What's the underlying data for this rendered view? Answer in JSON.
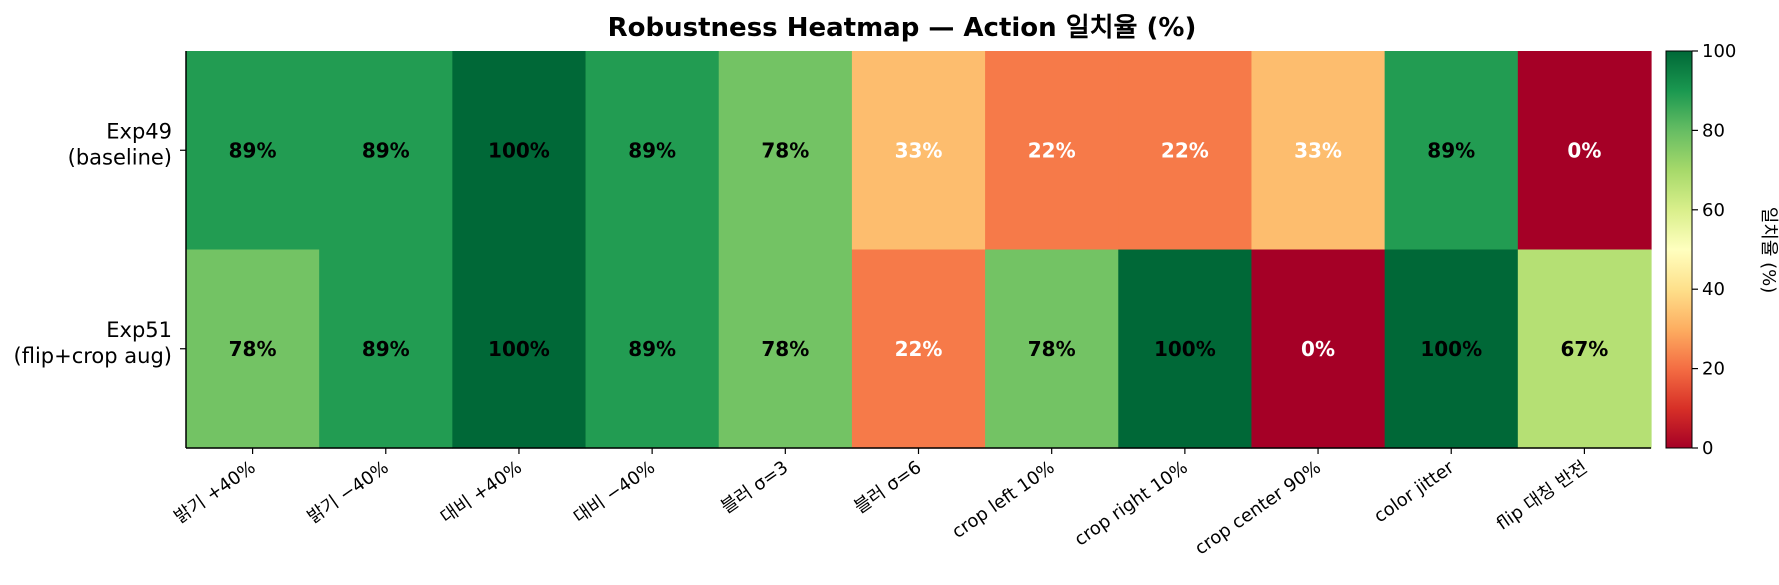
{
  "chart_data": {
    "type": "heatmap",
    "title": "Robustness Heatmap — Action 일치율 (%)",
    "rows": [
      "Exp49\n(baseline)",
      "Exp51\n(flip+crop aug)"
    ],
    "columns": [
      "밝기 +40%",
      "밝기 −40%",
      "대비 +40%",
      "대비 −40%",
      "블러 σ=3",
      "블러 σ=6",
      "crop left 10%",
      "crop right 10%",
      "crop center 90%",
      "color jitter",
      "flip 대칭 반전"
    ],
    "values": [
      [
        89,
        89,
        100,
        89,
        78,
        33,
        22,
        22,
        33,
        89,
        0
      ],
      [
        78,
        89,
        100,
        89,
        78,
        22,
        78,
        100,
        0,
        100,
        67
      ]
    ],
    "value_format": "{v}%",
    "colormap": "RdYlGn",
    "vmin": 0,
    "vmax": 100,
    "colorbar": {
      "label": "일치율 (%)",
      "ticks": [
        0,
        20,
        40,
        60,
        80,
        100
      ]
    }
  }
}
